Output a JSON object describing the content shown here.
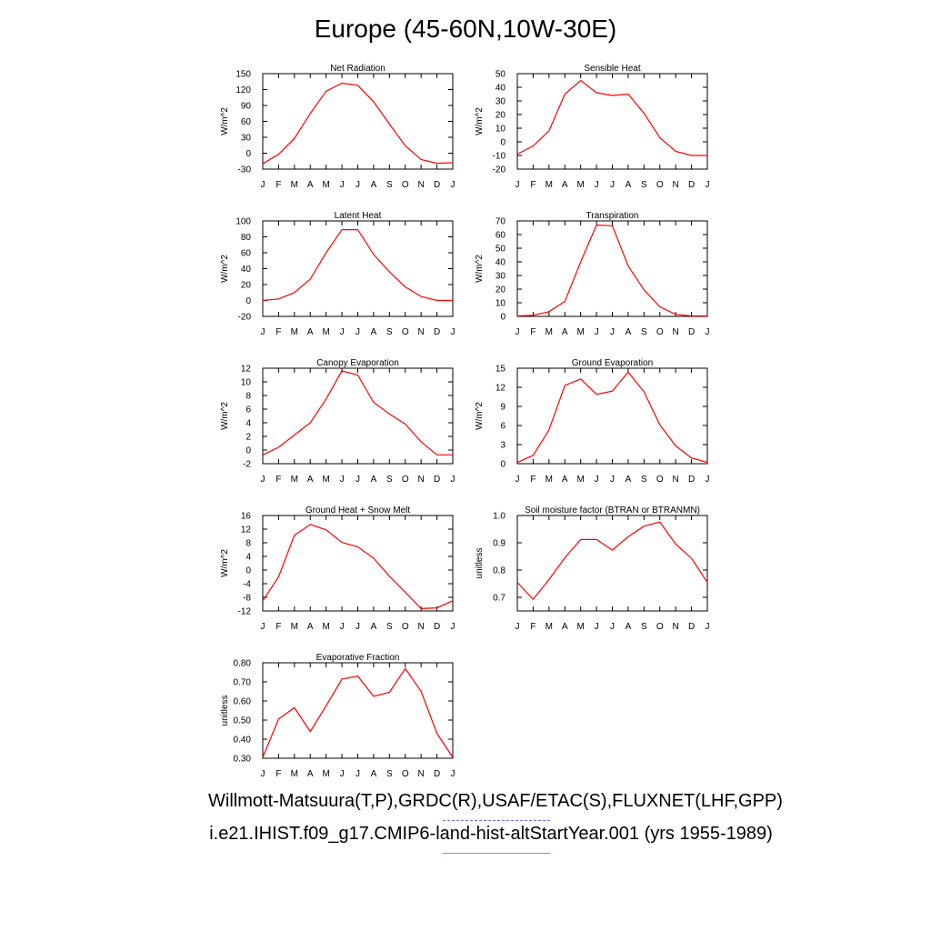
{
  "title": "Europe (45-60N,10W-30E)",
  "line_color": "#ff0000",
  "obs_color": "#6a6aff",
  "model_color": "#ff6a6a",
  "legend": {
    "obs": "Willmott-Matsuura(T,P),GRDC(R),USAF/ETAC(S),FLUXNET(LHF,GPP)",
    "model": "i.e21.IHIST.f09_g17.CMIP6-land-hist-altStartYear.001 (yrs 1955-1989)"
  },
  "chart_data": [
    {
      "type": "line",
      "title": "Net Radiation",
      "ylabel": "W/m^2",
      "x": [
        "J",
        "F",
        "M",
        "A",
        "M",
        "J",
        "J",
        "A",
        "S",
        "O",
        "N",
        "D",
        "J"
      ],
      "ylim": [
        -30,
        150
      ],
      "yticks": [
        -30,
        0,
        30,
        60,
        90,
        120,
        150
      ],
      "yticklabels": [
        "-30",
        "0",
        "30",
        "60",
        "90",
        "120",
        "150"
      ],
      "series": [
        {
          "values": [
            -20,
            -2,
            28,
            75,
            117,
            132,
            128,
            97,
            55,
            14,
            -12,
            -19,
            -18
          ]
        }
      ]
    },
    {
      "type": "line",
      "title": "Sensible Heat",
      "ylabel": "W/m^2",
      "x": [
        "J",
        "F",
        "M",
        "A",
        "M",
        "J",
        "J",
        "A",
        "S",
        "O",
        "N",
        "D",
        "J"
      ],
      "ylim": [
        -20,
        50
      ],
      "yticks": [
        -20,
        -10,
        0,
        10,
        20,
        30,
        40,
        50
      ],
      "yticklabels": [
        "-20",
        "-10",
        "0",
        "10",
        "20",
        "30",
        "40",
        "50"
      ],
      "series": [
        {
          "values": [
            -9,
            -3,
            8,
            35,
            45,
            36,
            34,
            35,
            21,
            3,
            -7,
            -10,
            -10
          ]
        }
      ]
    },
    {
      "type": "line",
      "title": "Latent Heat",
      "ylabel": "W/m^2",
      "x": [
        "J",
        "F",
        "M",
        "A",
        "M",
        "J",
        "J",
        "A",
        "S",
        "O",
        "N",
        "D",
        "J"
      ],
      "ylim": [
        -20,
        100
      ],
      "yticks": [
        -20,
        0,
        20,
        40,
        60,
        80,
        100
      ],
      "yticklabels": [
        "-20",
        "0",
        "20",
        "40",
        "60",
        "80",
        "100"
      ],
      "series": [
        {
          "values": [
            0,
            2,
            10,
            27,
            60,
            89,
            89,
            58,
            36,
            17,
            5,
            0,
            0
          ]
        }
      ]
    },
    {
      "type": "line",
      "title": "Transpiration",
      "ylabel": "W/m^2",
      "x": [
        "J",
        "F",
        "M",
        "A",
        "M",
        "J",
        "J",
        "A",
        "S",
        "O",
        "N",
        "D",
        "J"
      ],
      "ylim": [
        0,
        70
      ],
      "yticks": [
        0,
        10,
        20,
        30,
        40,
        50,
        60,
        70
      ],
      "yticklabels": [
        "0",
        "10",
        "20",
        "30",
        "40",
        "50",
        "60",
        "70"
      ],
      "series": [
        {
          "values": [
            0.3,
            0.8,
            3.5,
            11,
            40,
            67,
            66.5,
            37,
            19.5,
            7,
            1.5,
            0.3,
            0.3
          ]
        }
      ]
    },
    {
      "type": "line",
      "title": "Canopy Evaporation",
      "ylabel": "W/m^2",
      "x": [
        "J",
        "F",
        "M",
        "A",
        "M",
        "J",
        "J",
        "A",
        "S",
        "O",
        "N",
        "D",
        "J"
      ],
      "ylim": [
        -2,
        12
      ],
      "yticks": [
        -2,
        0,
        2,
        4,
        6,
        8,
        10,
        12
      ],
      "yticklabels": [
        "-2",
        "0",
        "2",
        "4",
        "6",
        "8",
        "10",
        "12"
      ],
      "series": [
        {
          "values": [
            -0.7,
            0.4,
            2.2,
            4,
            7.5,
            11.6,
            11,
            7,
            5.3,
            3.8,
            1.2,
            -0.7,
            -0.7
          ]
        }
      ]
    },
    {
      "type": "line",
      "title": "Ground Evaporation",
      "ylabel": "W/m^2",
      "x": [
        "J",
        "F",
        "M",
        "A",
        "M",
        "J",
        "J",
        "A",
        "S",
        "O",
        "N",
        "D",
        "J"
      ],
      "ylim": [
        0,
        15
      ],
      "yticks": [
        0,
        3,
        6,
        9,
        12,
        15
      ],
      "yticklabels": [
        "0",
        "3",
        "6",
        "9",
        "12",
        "15"
      ],
      "series": [
        {
          "values": [
            0.2,
            1.3,
            5.3,
            12.3,
            13.3,
            10.9,
            11.4,
            14.4,
            11.3,
            6.1,
            2.8,
            0.9,
            0.2
          ]
        }
      ]
    },
    {
      "type": "line",
      "title": "Ground Heat + Snow Melt",
      "ylabel": "W/m^2",
      "x": [
        "J",
        "F",
        "M",
        "A",
        "M",
        "J",
        "J",
        "A",
        "S",
        "O",
        "N",
        "D",
        "J"
      ],
      "ylim": [
        -12,
        16
      ],
      "yticks": [
        -12,
        -8,
        -4,
        0,
        4,
        8,
        12,
        16
      ],
      "yticklabels": [
        "-12",
        "-8",
        "-4",
        "0",
        "4",
        "8",
        "12",
        "16"
      ],
      "series": [
        {
          "values": [
            -9,
            -2,
            10.2,
            13.4,
            11.8,
            8.1,
            6.8,
            3.5,
            -1.8,
            -6.5,
            -11.3,
            -11.1,
            -9
          ]
        }
      ]
    },
    {
      "type": "line",
      "title": "Soil moisture factor (BTRAN or BTRANMN)",
      "ylabel": "unitless",
      "x": [
        "J",
        "F",
        "M",
        "A",
        "M",
        "J",
        "J",
        "A",
        "S",
        "O",
        "N",
        "D",
        "J"
      ],
      "ylim": [
        0.65,
        1.0
      ],
      "yticks": [
        0.7,
        0.8,
        0.9,
        1.0
      ],
      "yticklabels": [
        "0.7",
        "0.8",
        "0.9",
        "1.0"
      ],
      "series": [
        {
          "values": [
            0.755,
            0.693,
            0.765,
            0.845,
            0.912,
            0.912,
            0.873,
            0.922,
            0.961,
            0.976,
            0.895,
            0.843,
            0.755
          ]
        }
      ]
    },
    {
      "type": "line",
      "title": "Evaporative Fraction",
      "ylabel": "unitless",
      "x": [
        "J",
        "F",
        "M",
        "A",
        "M",
        "J",
        "J",
        "A",
        "S",
        "O",
        "N",
        "D",
        "J"
      ],
      "ylim": [
        0.3,
        0.8
      ],
      "yticks": [
        0.3,
        0.4,
        0.5,
        0.6,
        0.7,
        0.8
      ],
      "yticklabels": [
        "0.30",
        "0.40",
        "0.50",
        "0.60",
        "0.70",
        "0.80"
      ],
      "series": [
        {
          "values": [
            0.305,
            0.505,
            0.565,
            0.44,
            0.575,
            0.715,
            0.73,
            0.625,
            0.645,
            0.77,
            0.65,
            0.43,
            0.305
          ]
        }
      ]
    }
  ]
}
